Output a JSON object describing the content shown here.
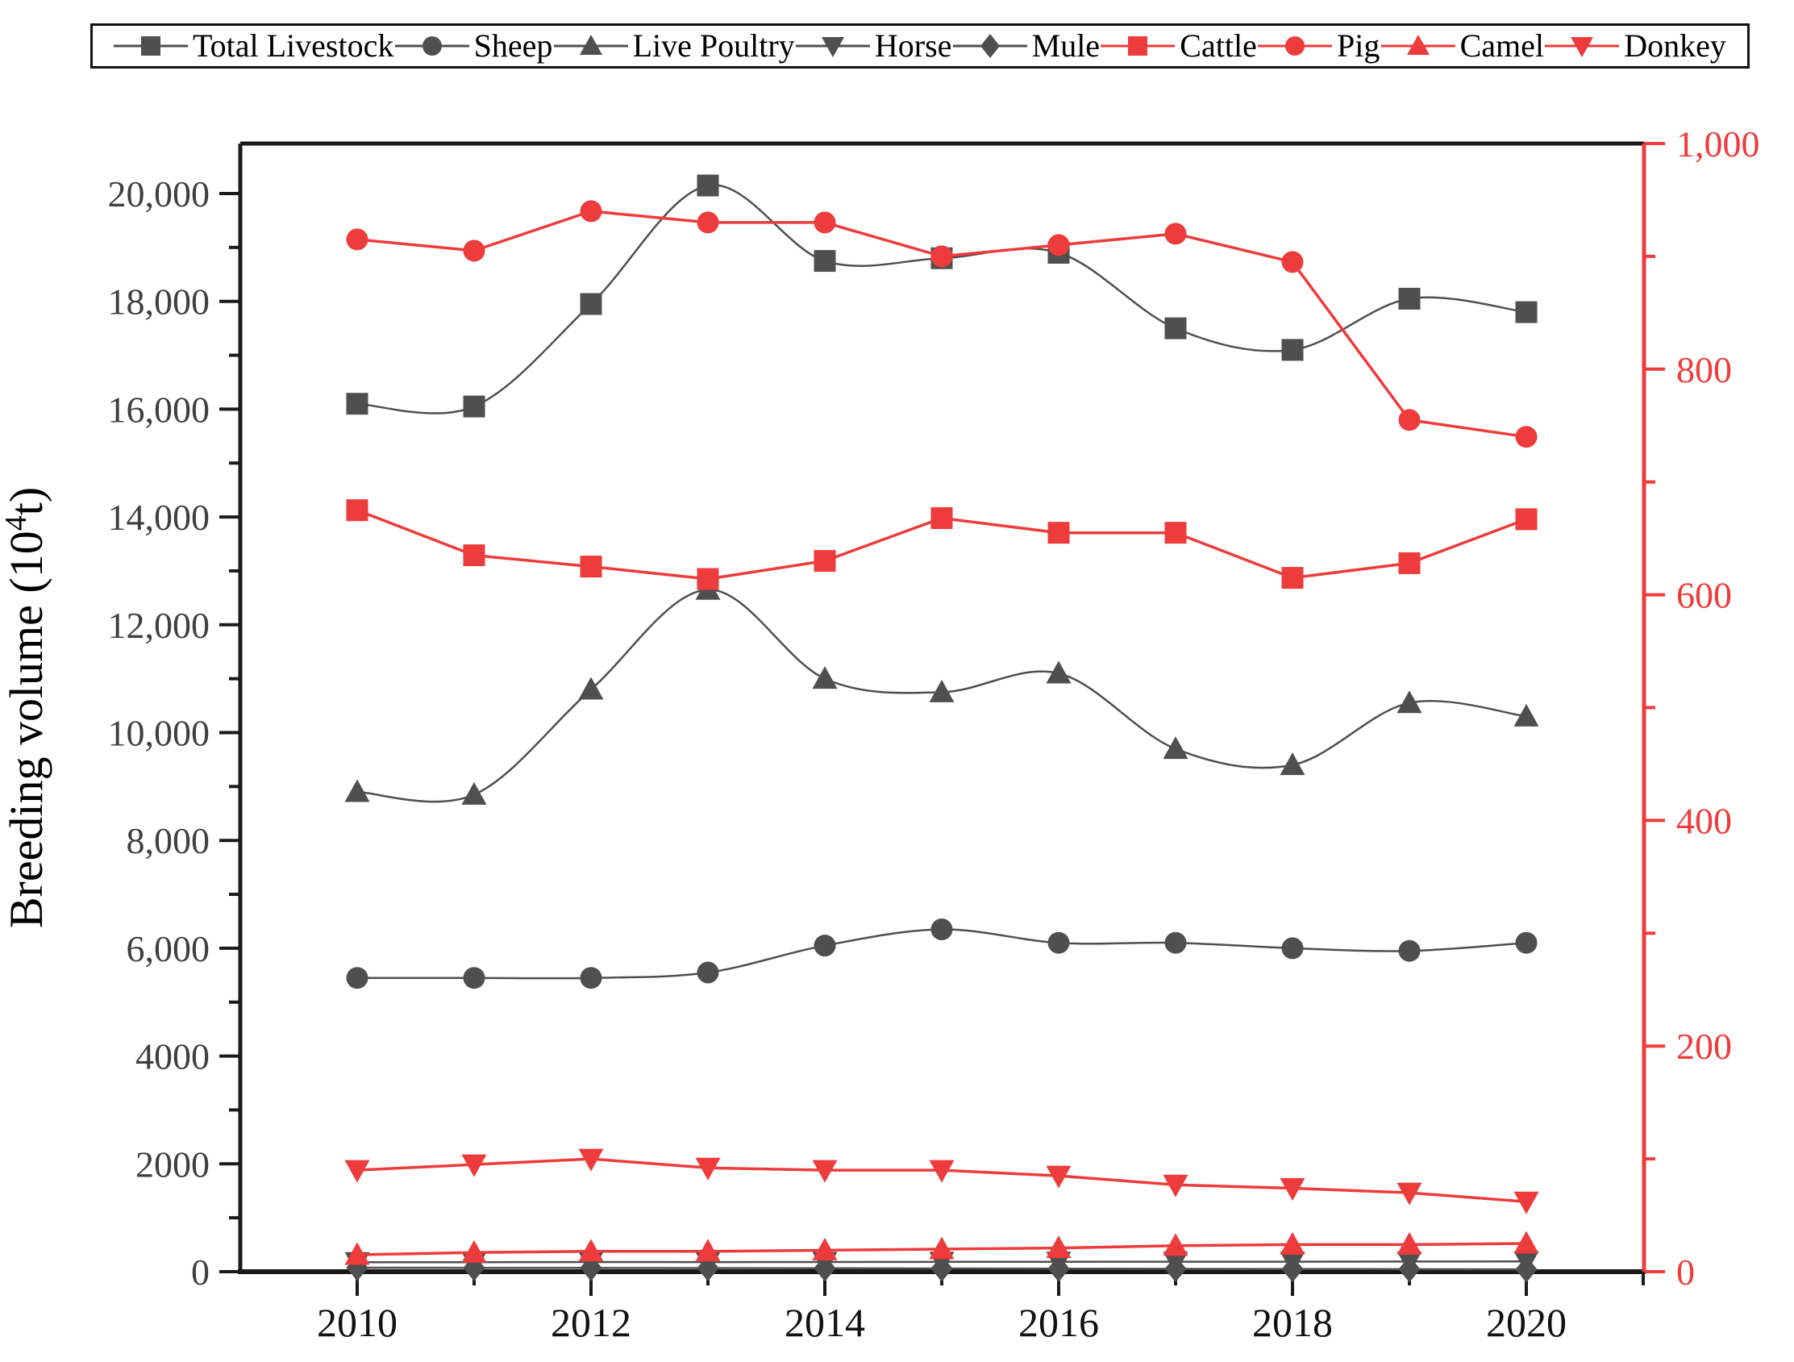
{
  "chart_data": {
    "type": "line",
    "title": "",
    "ylabel_left": "Breeding volume (10⁴t)",
    "ylabel_right": "",
    "xlabel": "",
    "grid": false,
    "legend_position": "top",
    "background": "#ffffff",
    "colors": {
      "dark": "#4f4f4f",
      "red": "#ee3b3b",
      "frame": "#1a1a1a",
      "left_tick_text": "#3f3f3f",
      "x_tick_text": "#111111"
    },
    "x": [
      2010,
      2011,
      2012,
      2013,
      2014,
      2015,
      2016,
      2017,
      2018,
      2019,
      2020
    ],
    "x_tick_labels": [
      "2010",
      "2012",
      "2014",
      "2016",
      "2018",
      "2020"
    ],
    "left_axis": {
      "min": 0,
      "max_label": 20000,
      "top_value": 20930,
      "major_step": 2000,
      "minor_step": 1000,
      "tick_labels": [
        "0",
        "2000",
        "4000",
        "6,000",
        "8,000",
        "10,000",
        "12,000",
        "14,000",
        "16,000",
        "18,000",
        "20,000"
      ]
    },
    "right_axis": {
      "min": 0,
      "max": 1000,
      "major_step": 200,
      "minor_step": 100,
      "tick_labels": [
        "0",
        "200",
        "400",
        "600",
        "800",
        "1,000"
      ]
    },
    "series": [
      {
        "name": "Total Livestock",
        "axis": "left",
        "color": "#4f4f4f",
        "marker": "square",
        "smooth": true,
        "values": [
          16100,
          16050,
          17950,
          20150,
          18750,
          18800,
          18900,
          17500,
          17100,
          18050,
          17800
        ]
      },
      {
        "name": "Sheep",
        "axis": "left",
        "color": "#4f4f4f",
        "marker": "circle",
        "smooth": true,
        "values": [
          5450,
          5450,
          5450,
          5550,
          6050,
          6350,
          6100,
          6100,
          6000,
          5950,
          6100
        ]
      },
      {
        "name": "Live Poultry",
        "axis": "left",
        "color": "#4f4f4f",
        "marker": "triangle-up",
        "smooth": true,
        "values": [
          8900,
          8850,
          10800,
          12650,
          11000,
          10750,
          11100,
          9700,
          9400,
          10550,
          10300
        ]
      },
      {
        "name": "Horse",
        "axis": "left",
        "color": "#4f4f4f",
        "marker": "triangle-down",
        "smooth": true,
        "values": [
          175,
          177,
          180,
          178,
          180,
          182,
          184,
          185,
          186,
          188,
          190
        ]
      },
      {
        "name": "Mule",
        "axis": "left",
        "color": "#4f4f4f",
        "marker": "diamond",
        "smooth": true,
        "values": [
          75,
          72,
          70,
          67,
          64,
          60,
          57,
          53,
          50,
          46,
          43
        ]
      },
      {
        "name": "Cattle",
        "axis": "right",
        "color": "#ee3b3b",
        "marker": "square",
        "smooth": false,
        "values": [
          675,
          635,
          625,
          614,
          630,
          668,
          655,
          655,
          615,
          628,
          667
        ]
      },
      {
        "name": "Pig",
        "axis": "right",
        "color": "#ee3b3b",
        "marker": "circle",
        "smooth": false,
        "values": [
          915,
          905,
          940,
          930,
          930,
          900,
          910,
          920,
          895,
          755,
          740
        ]
      },
      {
        "name": "Camel",
        "axis": "right",
        "color": "#ee3b3b",
        "marker": "triangle-up",
        "smooth": false,
        "values": [
          15,
          17,
          18,
          18,
          19,
          20,
          21,
          23,
          24,
          24,
          25
        ]
      },
      {
        "name": "Donkey",
        "axis": "right",
        "color": "#ee3b3b",
        "marker": "triangle-down",
        "smooth": false,
        "values": [
          90,
          95,
          100,
          92,
          90,
          90,
          85,
          77,
          74,
          70,
          62
        ]
      }
    ]
  }
}
